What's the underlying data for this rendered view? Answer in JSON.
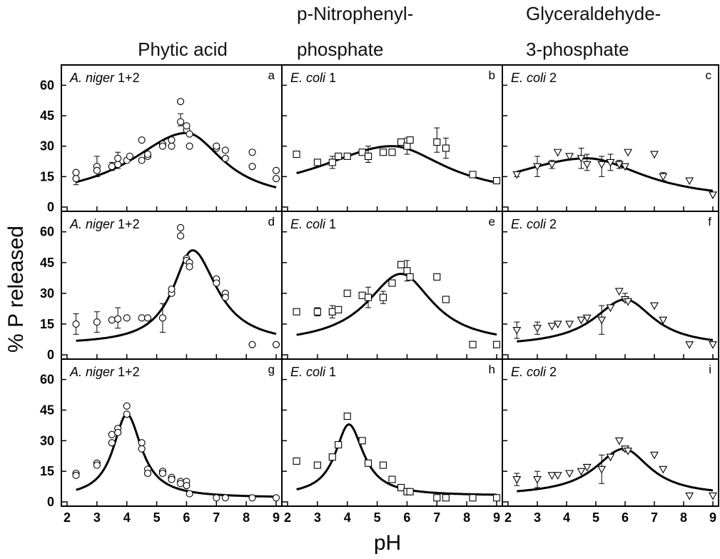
{
  "figure": {
    "column_titles": [
      [
        "Phytic acid"
      ],
      [
        "p-Nitrophenyl-",
        "phosphate"
      ],
      [
        "Glyceraldehyde-",
        "3-phosphate"
      ]
    ],
    "ylabel": "% P released",
    "xlabel": "pH"
  },
  "chart_data": {
    "type": "scatter",
    "layout": "3x3 grid of panels",
    "x_range": [
      2,
      9
    ],
    "y_range": [
      0,
      70
    ],
    "x_ticks": [
      2,
      3,
      4,
      5,
      6,
      7,
      8,
      9
    ],
    "y_ticks": [
      0,
      15,
      30,
      45,
      60
    ],
    "xlabel": "pH",
    "ylabel": "% P released",
    "panels": [
      {
        "letter": "a",
        "organism": "A. niger",
        "suffix": " 1+2",
        "column": "Phytic acid",
        "marker": "circle",
        "points": [
          [
            2.3,
            17
          ],
          [
            2.3,
            14
          ],
          [
            3,
            20
          ],
          [
            3,
            18
          ],
          [
            3.5,
            20
          ],
          [
            3.7,
            21
          ],
          [
            3.7,
            24
          ],
          [
            4,
            23
          ],
          [
            4.1,
            25
          ],
          [
            4.5,
            33
          ],
          [
            4.5,
            23
          ],
          [
            4.7,
            25
          ],
          [
            4.7,
            26
          ],
          [
            5.2,
            31
          ],
          [
            5.2,
            30
          ],
          [
            5.5,
            30
          ],
          [
            5.5,
            33
          ],
          [
            5.8,
            52
          ],
          [
            5.8,
            42
          ],
          [
            6,
            38
          ],
          [
            6,
            40
          ],
          [
            6.1,
            36
          ],
          [
            6.1,
            30
          ],
          [
            7,
            29
          ],
          [
            7,
            30
          ],
          [
            7.3,
            28
          ],
          [
            7.3,
            24
          ],
          [
            8.2,
            27
          ],
          [
            8.2,
            20
          ],
          [
            9,
            18
          ],
          [
            9,
            14
          ]
        ],
        "errorbars": [
          [
            2.3,
            14,
            3
          ],
          [
            3,
            20,
            5
          ],
          [
            3.5,
            20,
            2
          ],
          [
            3.7,
            23,
            4
          ],
          [
            5.8,
            43,
            3
          ]
        ],
        "fit": {
          "peak_pH": 6.0,
          "peak": 36.5,
          "base": 3,
          "width_left": 2.3,
          "width_right": 1.5
        }
      },
      {
        "letter": "d",
        "organism": "A. niger",
        "suffix": " 1+2",
        "column": "p-Nitrophenyl-phosphate",
        "marker": "circle",
        "points": [
          [
            2.3,
            15
          ],
          [
            3,
            16
          ],
          [
            3.5,
            17
          ],
          [
            3.7,
            17.5
          ],
          [
            4,
            18
          ],
          [
            4.5,
            18
          ],
          [
            4.7,
            18
          ],
          [
            5.2,
            18
          ],
          [
            5.5,
            30
          ],
          [
            5.5,
            32
          ],
          [
            5.8,
            62
          ],
          [
            5.8,
            58
          ],
          [
            6,
            47
          ],
          [
            6,
            46
          ],
          [
            6.1,
            45
          ],
          [
            6.1,
            43
          ],
          [
            7,
            37
          ],
          [
            7,
            35
          ],
          [
            7.3,
            30
          ],
          [
            7.3,
            28
          ],
          [
            8.2,
            5
          ],
          [
            9,
            5
          ]
        ],
        "errorbars": [
          [
            2.3,
            15,
            5
          ],
          [
            3,
            16,
            5
          ],
          [
            3.7,
            18,
            5
          ],
          [
            5.2,
            18,
            7
          ],
          [
            5.8,
            60,
            3
          ]
        ],
        "fit": {
          "peak_pH": 6.2,
          "peak": 51,
          "base": 5,
          "width_left": 0.8,
          "width_right": 1.0
        }
      },
      {
        "letter": "g",
        "organism": "A. niger",
        "suffix": " 1+2",
        "column": "Glyceraldehyde-3-phosphate",
        "marker": "circle",
        "points": [
          [
            2.3,
            14
          ],
          [
            2.3,
            13
          ],
          [
            3,
            19
          ],
          [
            3,
            18
          ],
          [
            3.5,
            33
          ],
          [
            3.5,
            29
          ],
          [
            3.7,
            36
          ],
          [
            3.7,
            34
          ],
          [
            4,
            47
          ],
          [
            4,
            43
          ],
          [
            4.5,
            29
          ],
          [
            4.5,
            26
          ],
          [
            4.7,
            16
          ],
          [
            4.7,
            14
          ],
          [
            5.2,
            15
          ],
          [
            5.2,
            14
          ],
          [
            5.5,
            12
          ],
          [
            5.5,
            11
          ],
          [
            5.8,
            10
          ],
          [
            5.8,
            9
          ],
          [
            6,
            10
          ],
          [
            6,
            8
          ],
          [
            6.1,
            4
          ],
          [
            7,
            2
          ],
          [
            7.3,
            2
          ],
          [
            8.2,
            2
          ],
          [
            9,
            2
          ]
        ],
        "errorbars": [],
        "fit": {
          "peak_pH": 4.0,
          "peak": 43,
          "base": 2,
          "width_left": 0.55,
          "width_right": 0.6
        }
      },
      {
        "letter": "b",
        "organism": "E. coli",
        "suffix": " 1",
        "column": "Phytic acid",
        "marker": "square",
        "points": [
          [
            2.3,
            26
          ],
          [
            3,
            22
          ],
          [
            3.5,
            22
          ],
          [
            3.7,
            25
          ],
          [
            4,
            25
          ],
          [
            4.5,
            27
          ],
          [
            4.7,
            25
          ],
          [
            5.2,
            27
          ],
          [
            5.5,
            27
          ],
          [
            5.8,
            32
          ],
          [
            6,
            30
          ],
          [
            6.1,
            33
          ],
          [
            7,
            32
          ],
          [
            7.3,
            29
          ],
          [
            8.2,
            16
          ],
          [
            9,
            13
          ]
        ],
        "errorbars": [
          [
            3.5,
            22,
            3
          ],
          [
            4.7,
            26,
            4
          ],
          [
            6,
            30,
            4
          ],
          [
            7,
            33,
            6
          ],
          [
            7.3,
            29,
            5
          ]
        ],
        "fit": {
          "peak_pH": 5.5,
          "peak": 30,
          "base": 5,
          "width_left": 3.0,
          "width_right": 2.2
        }
      },
      {
        "letter": "e",
        "organism": "E. coli",
        "suffix": " 1",
        "column": "p-Nitrophenyl-phosphate",
        "marker": "square",
        "points": [
          [
            2.3,
            21
          ],
          [
            3,
            21
          ],
          [
            3.5,
            21
          ],
          [
            3.7,
            22
          ],
          [
            4,
            30
          ],
          [
            4.5,
            29
          ],
          [
            4.7,
            28
          ],
          [
            5.2,
            28
          ],
          [
            5.5,
            35
          ],
          [
            5.8,
            44
          ],
          [
            6,
            41
          ],
          [
            6.1,
            38
          ],
          [
            7,
            38
          ],
          [
            7.3,
            27
          ],
          [
            8.2,
            5
          ],
          [
            9,
            5
          ]
        ],
        "errorbars": [
          [
            3,
            21,
            2
          ],
          [
            3.5,
            21,
            3
          ],
          [
            4.7,
            28,
            5
          ],
          [
            5.2,
            28,
            3
          ],
          [
            6,
            41,
            5
          ]
        ],
        "fit": {
          "peak_pH": 5.8,
          "peak": 39.5,
          "base": 5,
          "width_left": 1.4,
          "width_right": 1.3
        }
      },
      {
        "letter": "h",
        "organism": "E. coli",
        "suffix": " 1",
        "column": "Glyceraldehyde-3-phosphate",
        "marker": "square",
        "points": [
          [
            2.3,
            20
          ],
          [
            3,
            18
          ],
          [
            3.5,
            22
          ],
          [
            3.7,
            28
          ],
          [
            4,
            42
          ],
          [
            4.5,
            30
          ],
          [
            4.7,
            19
          ],
          [
            5.2,
            18
          ],
          [
            5.5,
            11
          ],
          [
            5.8,
            7
          ],
          [
            6,
            5
          ],
          [
            6.1,
            5
          ],
          [
            7,
            2
          ],
          [
            7.3,
            2
          ],
          [
            8.2,
            2
          ],
          [
            9,
            2
          ]
        ],
        "errorbars": [],
        "fit": {
          "peak_pH": 4.05,
          "peak": 38,
          "base": 3,
          "width_left": 0.55,
          "width_right": 0.6
        }
      },
      {
        "letter": "c",
        "organism": "E. coli",
        "suffix": " 2",
        "column": "Phytic acid",
        "marker": "triangle",
        "points": [
          [
            2.3,
            16
          ],
          [
            3,
            20
          ],
          [
            3.5,
            21
          ],
          [
            3.7,
            27
          ],
          [
            4.1,
            25
          ],
          [
            4.5,
            24
          ],
          [
            4.7,
            21
          ],
          [
            5.2,
            21
          ],
          [
            5.5,
            22
          ],
          [
            5.8,
            21
          ],
          [
            6,
            20
          ],
          [
            6.1,
            27
          ],
          [
            7,
            26
          ],
          [
            7.3,
            15
          ],
          [
            8.2,
            13
          ],
          [
            9,
            6
          ]
        ],
        "errorbars": [
          [
            2.3,
            16,
            1
          ],
          [
            3,
            20,
            5
          ],
          [
            3.5,
            21,
            2
          ],
          [
            4.5,
            24,
            5
          ],
          [
            4.7,
            22,
            4
          ],
          [
            5.2,
            20,
            5
          ],
          [
            5.5,
            22,
            4
          ],
          [
            5.8,
            21,
            2
          ],
          [
            7.3,
            15,
            2
          ]
        ],
        "fit": {
          "peak_pH": 4.7,
          "peak": 24,
          "base": 3,
          "width_left": 3.5,
          "width_right": 2.4
        }
      },
      {
        "letter": "f",
        "organism": "E. coli",
        "suffix": " 2",
        "column": "p-Nitrophenyl-phosphate",
        "marker": "triangle",
        "points": [
          [
            2.3,
            12
          ],
          [
            3,
            13
          ],
          [
            3.5,
            14
          ],
          [
            3.7,
            15
          ],
          [
            4.1,
            15
          ],
          [
            4.5,
            17
          ],
          [
            4.7,
            18
          ],
          [
            5.2,
            17
          ],
          [
            5.5,
            23
          ],
          [
            5.8,
            31
          ],
          [
            6,
            27
          ],
          [
            6.1,
            26
          ],
          [
            7,
            24
          ],
          [
            7.3,
            17
          ],
          [
            8.2,
            5
          ],
          [
            9,
            5
          ]
        ],
        "errorbars": [
          [
            2.3,
            12,
            4
          ],
          [
            3,
            13,
            3
          ],
          [
            5.2,
            17,
            7
          ],
          [
            6,
            28,
            2
          ]
        ],
        "fit": {
          "peak_pH": 6.0,
          "peak": 27,
          "base": 4,
          "width_left": 1.3,
          "width_right": 1.2
        }
      },
      {
        "letter": "i",
        "organism": "E. coli",
        "suffix": " 2",
        "column": "Glyceraldehyde-3-phosphate",
        "marker": "triangle",
        "points": [
          [
            2.3,
            11
          ],
          [
            3,
            11
          ],
          [
            3.5,
            13
          ],
          [
            3.7,
            13
          ],
          [
            4.1,
            14
          ],
          [
            4.5,
            15
          ],
          [
            4.7,
            17
          ],
          [
            5.2,
            16
          ],
          [
            5.5,
            22
          ],
          [
            5.8,
            30
          ],
          [
            6,
            26
          ],
          [
            6.1,
            25
          ],
          [
            7,
            23
          ],
          [
            7.3,
            16
          ],
          [
            8.2,
            3
          ],
          [
            9,
            3
          ]
        ],
        "errorbars": [
          [
            2.3,
            11,
            3
          ],
          [
            3,
            11,
            4
          ],
          [
            5.2,
            16,
            7
          ],
          [
            6,
            26,
            1
          ]
        ],
        "fit": {
          "peak_pH": 5.95,
          "peak": 26,
          "base": 3,
          "width_left": 1.2,
          "width_right": 1.1
        }
      }
    ]
  }
}
